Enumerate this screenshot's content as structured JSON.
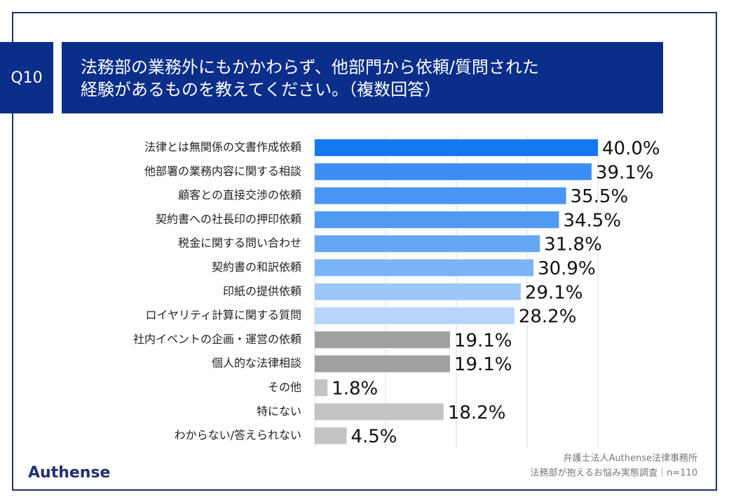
{
  "chart_data": {
    "type": "hbar",
    "badge": "Q10",
    "title": [
      "法務部の業務外にもかかわらず、他部門から依頼/質問された",
      "経験があるものを教えてください。（複数回答）"
    ],
    "categories": [
      "法律とは無関係の文書作成依頼",
      "他部署の業務内容に関する相談",
      "顧客との直接交渉の依頼",
      "契約書への社長印の押印依頼",
      "税金に関する問い合わせ",
      "契約書の和訳依頼",
      "印紙の提供依頼",
      "ロイヤリティ計算に関する質問",
      "社内イベントの企画・運営の依頼",
      "個人的な法律相談",
      "その他",
      "特にない",
      "わからない/答えられない"
    ],
    "values": [
      40.0,
      39.1,
      35.5,
      34.5,
      31.8,
      30.9,
      29.1,
      28.2,
      19.1,
      19.1,
      1.8,
      18.2,
      4.5
    ],
    "value_labels": [
      "40.0%",
      "39.1%",
      "35.5%",
      "34.5%",
      "31.8%",
      "30.9%",
      "29.1%",
      "28.2%",
      "19.1%",
      "19.1%",
      "1.8%",
      "18.2%",
      "4.5%"
    ],
    "colors": [
      "#1479f0",
      "#3b8ef2",
      "#4895f3",
      "#4f9af3",
      "#66a7f5",
      "#7ab3f6",
      "#9cc7f8",
      "#b5d6fa",
      "#a0a0a0",
      "#a0a0a0",
      "#c4c4c4",
      "#c4c4c4",
      "#c4c4c4"
    ],
    "xlim": [
      0,
      40
    ],
    "xticks": [
      0,
      10,
      20,
      30,
      40
    ],
    "grid": true,
    "source": [
      "弁護士法人Authense法律事務所",
      "法務部が抱えるお悩み実態調査｜n=110"
    ],
    "logo": "Authense"
  }
}
